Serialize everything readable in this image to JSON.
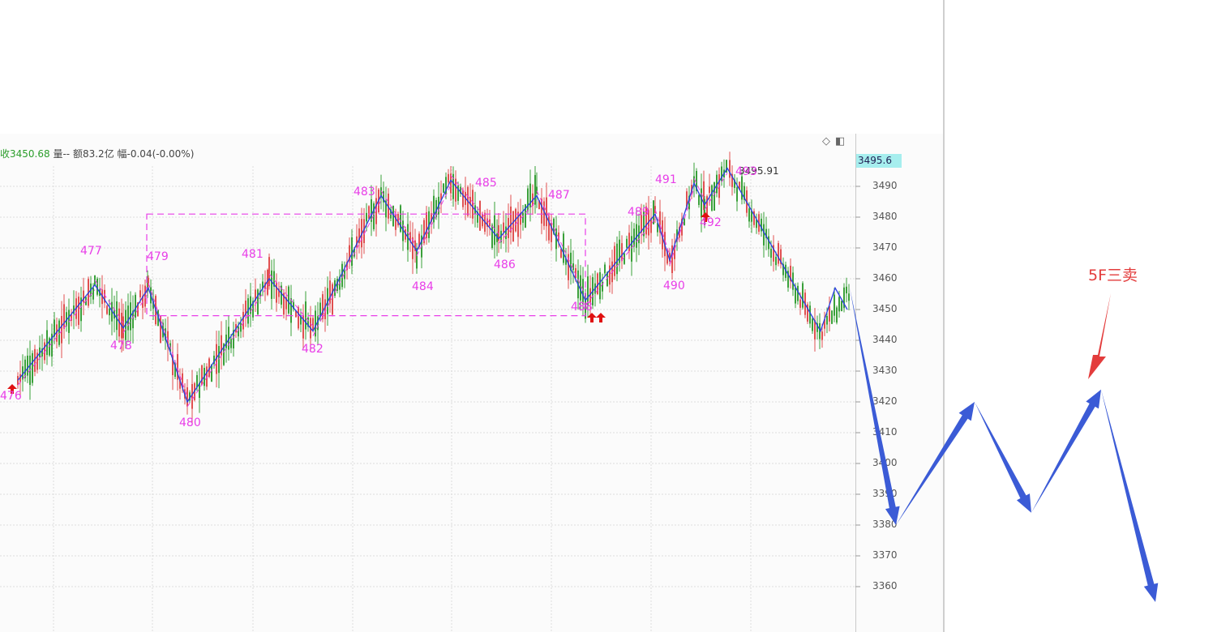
{
  "header": {
    "close_label": "收",
    "close_value": "3450.68",
    "volume_text": "量--",
    "amount_text": "额83.2亿",
    "change_text": "幅-0.04(-0.00%)"
  },
  "panel_icons": {
    "diamond": "diamond-icon",
    "panel": "panel-toggle-icon"
  },
  "price_tag": "3495.6",
  "peak_label": "3495.91",
  "annotation": {
    "text": "5F三卖",
    "color": "#e33c3c"
  },
  "colors": {
    "zigzag": "#2a3fe0",
    "box": "#e83ee8",
    "label": "#e83ee8",
    "up": "#e05050",
    "down": "#3aa03a",
    "hand_arrow": "#3b5bd6"
  },
  "chart_data": {
    "type": "candlestick",
    "ylim": [
      3348,
      3515
    ],
    "yticks": [
      "3490",
      "3480",
      "3470",
      "3460",
      "3450",
      "3440",
      "3430",
      "3420",
      "3410",
      "3400",
      "3390",
      "3380",
      "3370",
      "3360"
    ],
    "zigzag_points": [
      {
        "label": "476",
        "price": 3427
      },
      {
        "label": "477",
        "price": 3458
      },
      {
        "label": "478",
        "price": 3444
      },
      {
        "label": "479",
        "price": 3457
      },
      {
        "label": "480",
        "price": 3420
      },
      {
        "label": "481",
        "price": 3460
      },
      {
        "label": "482",
        "price": 3443
      },
      {
        "label": "483",
        "price": 3487
      },
      {
        "label": "484",
        "price": 3469
      },
      {
        "label": "485",
        "price": 3492
      },
      {
        "label": "486",
        "price": 3473
      },
      {
        "label": "487",
        "price": 3487
      },
      {
        "label": "488",
        "price": 3453
      },
      {
        "label": "489",
        "price": 3481
      },
      {
        "label": "490",
        "price": 3466
      },
      {
        "label": "491",
        "price": 3491
      },
      {
        "label": "492",
        "price": 3484
      },
      {
        "label": "493",
        "price": 3495.91
      }
    ],
    "range_box": {
      "top": 3481,
      "bottom": 3448
    },
    "projection_arrows": [
      {
        "from": 3457,
        "to": 3380
      },
      {
        "from": 3380,
        "to": 3420
      },
      {
        "from": 3420,
        "to": 3384
      },
      {
        "from": 3384,
        "to": 3424
      },
      {
        "from": 3424,
        "to": 3355
      }
    ]
  }
}
